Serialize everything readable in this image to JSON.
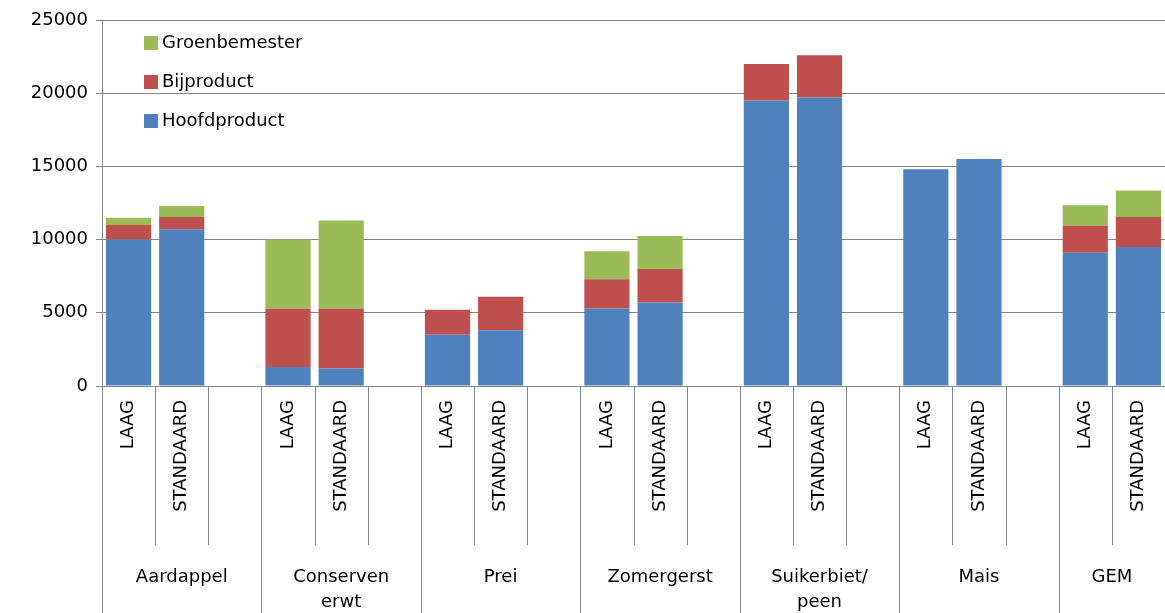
{
  "chart_data": {
    "type": "bar",
    "stacked": true,
    "categories": [
      "LAAG",
      "STANDAARD",
      null,
      "LAAG",
      "STANDAARD",
      null,
      "LAAG",
      "STANDAARD",
      null,
      "LAAG",
      "STANDAARD",
      null,
      "LAAG",
      "STANDAARD",
      null,
      "LAAG",
      "STANDAARD",
      null,
      "LAAG",
      "STANDAARD"
    ],
    "series": [
      {
        "name": "Hoofdproduct",
        "color": "#4f81bd",
        "values": [
          10000,
          10700,
          null,
          1300,
          1200,
          null,
          3500,
          3800,
          null,
          5300,
          5700,
          null,
          19500,
          19700,
          null,
          14800,
          15500,
          null,
          9100,
          9500
        ]
      },
      {
        "name": "Bijproduct",
        "color": "#c0504d",
        "values": [
          1000,
          850,
          null,
          4000,
          4100,
          null,
          1700,
          2300,
          null,
          2000,
          2300,
          null,
          2500,
          2900,
          null,
          null,
          null,
          null,
          1850,
          2050
        ]
      },
      {
        "name": "Groenbemester",
        "color": "#9bbb59",
        "values": [
          500,
          750,
          null,
          4700,
          6000,
          null,
          null,
          null,
          null,
          1900,
          2250,
          null,
          null,
          null,
          null,
          null,
          null,
          null,
          1400,
          1800
        ]
      }
    ],
    "ylim": [
      0,
      25000
    ],
    "yticks": [
      0,
      5000,
      10000,
      15000,
      20000,
      25000
    ],
    "grid": "y",
    "legend": "top left",
    "annotations": [
      "Aardappel",
      "Conserven erwt",
      "Prei",
      "Zomergerst",
      "Suikerbiet/peen",
      "Mais",
      "GEM"
    ]
  }
}
